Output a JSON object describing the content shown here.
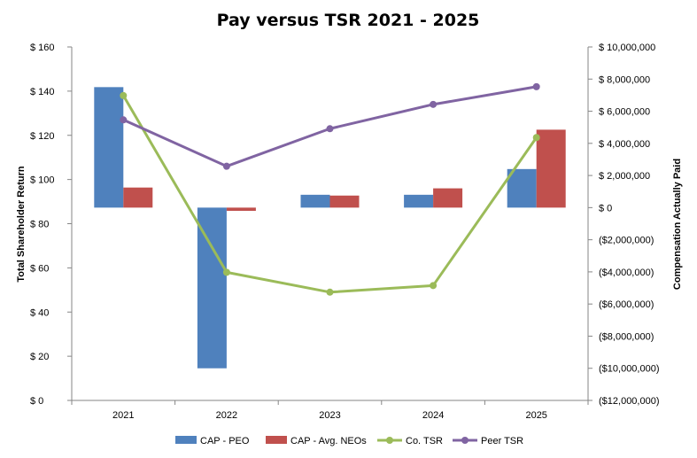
{
  "chart_data": {
    "type": "bar",
    "title": "Pay versus TSR 2021 - 2025",
    "categories": [
      "2021",
      "2022",
      "2023",
      "2024",
      "2025"
    ],
    "y_left": {
      "label": "Total Shareholder Return",
      "range": [
        0,
        160
      ],
      "ticks": [
        0,
        20,
        40,
        60,
        80,
        100,
        120,
        140,
        160
      ],
      "tick_labels": [
        "$ 0",
        "$ 20",
        "$ 40",
        "$ 60",
        "$ 80",
        "$ 100",
        "$ 120",
        "$ 140",
        "$ 160"
      ]
    },
    "y_right": {
      "label": "Compensation Actually Paid",
      "range": [
        -12000000,
        10000000
      ],
      "ticks": [
        -12000000,
        -10000000,
        -8000000,
        -6000000,
        -4000000,
        -2000000,
        0,
        2000000,
        4000000,
        6000000,
        8000000,
        10000000
      ],
      "tick_labels": [
        "($12,000,000)",
        "($10,000,000)",
        "($8,000,000)",
        "($6,000,000)",
        "($4,000,000)",
        "($2,000,000)",
        "$ 0",
        "$ 2,000,000",
        "$ 4,000,000",
        "$ 6,000,000",
        "$ 8,000,000",
        "$ 10,000,000"
      ]
    },
    "series": [
      {
        "name": "CAP - PEO",
        "kind": "bar",
        "axis": "right",
        "color": "#4F81BD",
        "values": [
          7500000,
          -10000000,
          800000,
          800000,
          2400000
        ]
      },
      {
        "name": "CAP - Avg. NEOs",
        "kind": "bar",
        "axis": "right",
        "color": "#C0504D",
        "values": [
          1250000,
          -200000,
          750000,
          1200000,
          4850000
        ]
      },
      {
        "name": "Co. TSR",
        "kind": "line",
        "axis": "left",
        "color": "#9BBB59",
        "values": [
          138,
          58,
          49,
          52,
          119
        ]
      },
      {
        "name": "Peer TSR",
        "kind": "line",
        "axis": "left",
        "color": "#8064A2",
        "values": [
          127,
          106,
          123,
          134,
          142
        ]
      }
    ],
    "legend": "bottom",
    "grid": false
  }
}
